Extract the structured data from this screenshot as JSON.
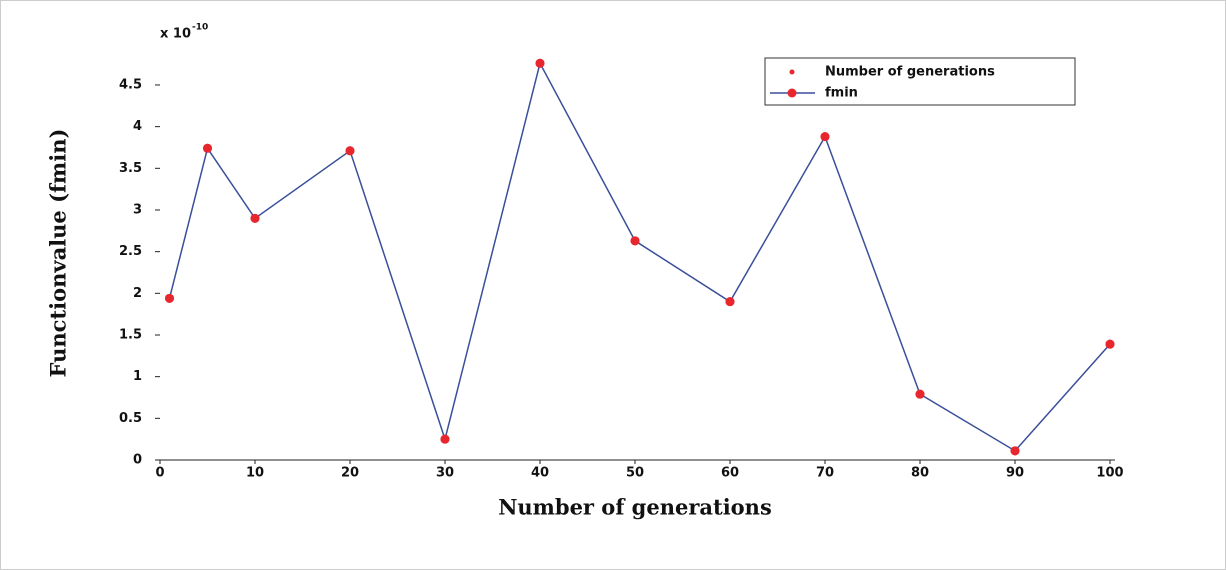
{
  "chart_data": {
    "type": "line",
    "xlabel": "Number of generations",
    "ylabel": "Functionvalue (fmin)",
    "y_exponent": {
      "base": "x 10",
      "power": "-10"
    },
    "x": [
      1,
      5,
      10,
      20,
      30,
      40,
      50,
      60,
      70,
      80,
      90,
      100
    ],
    "series": [
      {
        "name": "Number of generations",
        "color": "#e8262d",
        "style": "markers",
        "values": [
          1.94,
          3.74,
          2.9,
          3.71,
          0.25,
          4.76,
          2.63,
          1.9,
          3.88,
          0.79,
          0.11,
          1.39
        ]
      },
      {
        "name": "fmin",
        "color": "#3a4f9a",
        "marker_color": "#e8262d",
        "style": "line-markers",
        "values": [
          1.94,
          3.74,
          2.9,
          3.71,
          0.25,
          4.76,
          2.63,
          1.9,
          3.88,
          0.79,
          0.11,
          1.39
        ]
      }
    ],
    "xlim": [
      0,
      100
    ],
    "xticks": [
      0,
      10,
      20,
      30,
      40,
      50,
      60,
      70,
      80,
      90,
      100
    ],
    "ylim": [
      0,
      5
    ],
    "yticks": [
      0,
      0.5,
      1,
      1.5,
      2,
      2.5,
      3,
      3.5,
      4,
      4.5
    ],
    "legend": "upper-right"
  }
}
